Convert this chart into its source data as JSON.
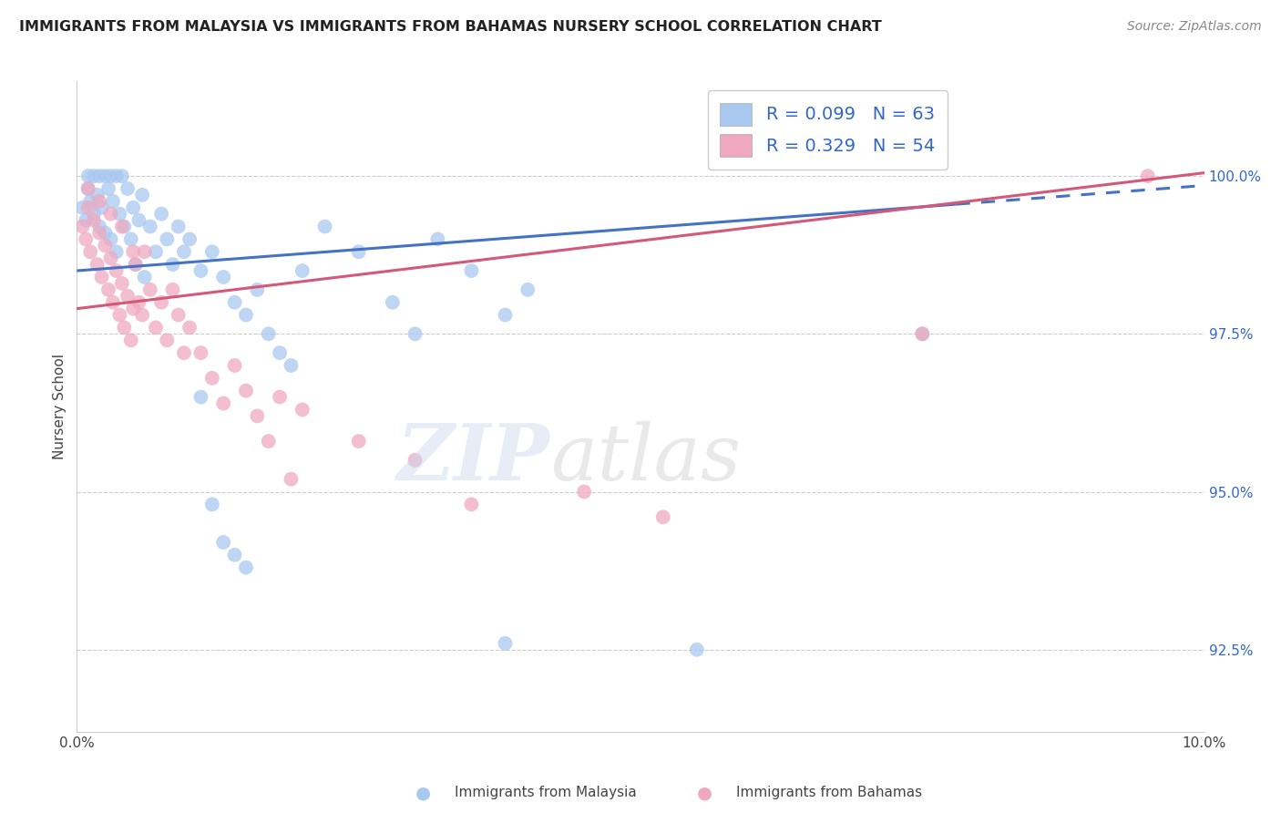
{
  "title": "IMMIGRANTS FROM MALAYSIA VS IMMIGRANTS FROM BAHAMAS NURSERY SCHOOL CORRELATION CHART",
  "source": "Source: ZipAtlas.com",
  "ylabel": "Nursery School",
  "yticks": [
    92.5,
    95.0,
    97.5,
    100.0
  ],
  "ytick_labels": [
    "92.5%",
    "95.0%",
    "97.5%",
    "100.0%"
  ],
  "malaysia_color": "#a8c8f0",
  "bahamas_color": "#f0a8c0",
  "malaysia_line_color": "#4472c4",
  "bahamas_line_color": "#d45878",
  "xmin": 0.0,
  "xmax": 10.0,
  "ymin": 91.2,
  "ymax": 101.5,
  "malaysia_x": [
    0.05,
    0.08,
    0.1,
    0.1,
    0.12,
    0.15,
    0.15,
    0.18,
    0.2,
    0.2,
    0.22,
    0.25,
    0.25,
    0.28,
    0.3,
    0.3,
    0.32,
    0.35,
    0.35,
    0.38,
    0.4,
    0.42,
    0.45,
    0.48,
    0.5,
    0.52,
    0.55,
    0.58,
    0.6,
    0.65,
    0.7,
    0.75,
    0.8,
    0.85,
    0.9,
    0.95,
    1.0,
    1.1,
    1.2,
    1.3,
    1.4,
    1.5,
    1.6,
    1.7,
    1.8,
    1.9,
    2.0,
    2.2,
    2.5,
    2.8,
    3.0,
    3.2,
    3.5,
    3.8,
    4.0,
    1.1,
    1.2,
    1.3,
    1.4,
    1.5,
    5.5,
    7.5,
    3.8
  ],
  "malaysia_y": [
    99.5,
    99.3,
    100.0,
    99.8,
    99.6,
    100.0,
    99.4,
    99.7,
    100.0,
    99.2,
    99.5,
    100.0,
    99.1,
    99.8,
    100.0,
    99.0,
    99.6,
    100.0,
    98.8,
    99.4,
    100.0,
    99.2,
    99.8,
    99.0,
    99.5,
    98.6,
    99.3,
    99.7,
    98.4,
    99.2,
    98.8,
    99.4,
    99.0,
    98.6,
    99.2,
    98.8,
    99.0,
    98.5,
    98.8,
    98.4,
    98.0,
    97.8,
    98.2,
    97.5,
    97.2,
    97.0,
    98.5,
    99.2,
    98.8,
    98.0,
    97.5,
    99.0,
    98.5,
    97.8,
    98.2,
    96.5,
    94.8,
    94.2,
    94.0,
    93.8,
    92.5,
    97.5,
    92.6
  ],
  "bahamas_x": [
    0.05,
    0.08,
    0.1,
    0.12,
    0.15,
    0.18,
    0.2,
    0.22,
    0.25,
    0.28,
    0.3,
    0.32,
    0.35,
    0.38,
    0.4,
    0.42,
    0.45,
    0.48,
    0.5,
    0.52,
    0.55,
    0.58,
    0.6,
    0.65,
    0.7,
    0.75,
    0.8,
    0.85,
    0.9,
    0.95,
    1.0,
    1.1,
    1.2,
    1.3,
    1.4,
    1.5,
    1.6,
    1.7,
    1.8,
    1.9,
    2.0,
    2.5,
    3.0,
    3.5,
    4.5,
    5.2,
    7.5,
    9.5,
    0.1,
    0.2,
    0.3,
    0.4,
    0.5
  ],
  "bahamas_y": [
    99.2,
    99.0,
    99.5,
    98.8,
    99.3,
    98.6,
    99.1,
    98.4,
    98.9,
    98.2,
    98.7,
    98.0,
    98.5,
    97.8,
    98.3,
    97.6,
    98.1,
    97.4,
    97.9,
    98.6,
    98.0,
    97.8,
    98.8,
    98.2,
    97.6,
    98.0,
    97.4,
    98.2,
    97.8,
    97.2,
    97.6,
    97.2,
    96.8,
    96.4,
    97.0,
    96.6,
    96.2,
    95.8,
    96.5,
    95.2,
    96.3,
    95.8,
    95.5,
    94.8,
    95.0,
    94.6,
    97.5,
    100.0,
    99.8,
    99.6,
    99.4,
    99.2,
    98.8
  ],
  "my_line_x0": 0.0,
  "my_line_y0": 98.5,
  "my_line_x1": 10.0,
  "my_line_y1": 99.85,
  "my_line_solid_end": 7.8,
  "bah_line_x0": 0.0,
  "bah_line_y0": 97.9,
  "bah_line_x1": 10.0,
  "bah_line_y1": 100.05
}
